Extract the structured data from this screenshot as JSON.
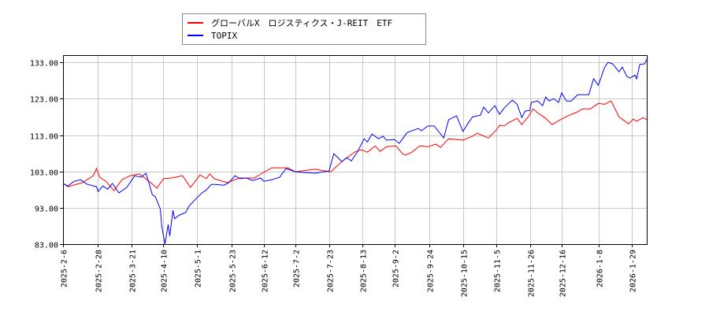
{
  "chart_data": {
    "type": "line",
    "title": "",
    "xlabel": "",
    "ylabel": "",
    "ylim": [
      83,
      135
    ],
    "xlim": [
      "2025-02-06",
      "2026-02-08"
    ],
    "grid": true,
    "legend_position": "top-center",
    "y_ticks": [
      "83.00",
      "93.00",
      "103.00",
      "113.00",
      "123.00",
      "133.00"
    ],
    "x_ticks": [
      "2025-2-6",
      "2025-2-28",
      "2025-3-21",
      "2025-4-10",
      "2025-5-1",
      "2025-5-23",
      "2025-6-12",
      "2025-7-2",
      "2025-7-23",
      "2025-8-13",
      "2025-9-2",
      "2025-9-24",
      "2025-10-15",
      "2025-11-5",
      "2025-11-26",
      "2025-12-16",
      "2026-1-8",
      "2026-1-29"
    ],
    "series": [
      {
        "name": "グローバルX　ロジスティクス・J-REIT　ETF",
        "color": "#ff0000",
        "points": [
          [
            "2025-02-06",
            99.7
          ],
          [
            "2025-02-09",
            98.8
          ],
          [
            "2025-02-18",
            99.9
          ],
          [
            "2025-02-25",
            101.8
          ],
          [
            "2025-02-27",
            103.8
          ],
          [
            "2025-03-01",
            101.4
          ],
          [
            "2025-03-05",
            100.3
          ],
          [
            "2025-03-10",
            97.7
          ],
          [
            "2025-03-15",
            100.7
          ],
          [
            "2025-03-20",
            101.8
          ],
          [
            "2025-03-26",
            102.3
          ],
          [
            "2025-04-01",
            100.3
          ],
          [
            "2025-04-06",
            98.4
          ],
          [
            "2025-04-10",
            101.0
          ],
          [
            "2025-04-15",
            101.2
          ],
          [
            "2025-04-22",
            101.8
          ],
          [
            "2025-04-27",
            98.6
          ],
          [
            "2025-05-03",
            102.0
          ],
          [
            "2025-05-07",
            101.0
          ],
          [
            "2025-05-09",
            102.3
          ],
          [
            "2025-05-12",
            101.0
          ],
          [
            "2025-05-20",
            99.9
          ],
          [
            "2025-05-28",
            101.2
          ],
          [
            "2025-06-06",
            101.2
          ],
          [
            "2025-06-11",
            102.5
          ],
          [
            "2025-06-17",
            104.0
          ],
          [
            "2025-06-27",
            104.0
          ],
          [
            "2025-07-02",
            102.9
          ],
          [
            "2025-07-14",
            103.6
          ],
          [
            "2025-07-24",
            102.9
          ],
          [
            "2025-07-31",
            105.7
          ],
          [
            "2025-08-08",
            108.3
          ],
          [
            "2025-08-12",
            109.0
          ],
          [
            "2025-08-16",
            108.3
          ],
          [
            "2025-08-21",
            110.0
          ],
          [
            "2025-08-24",
            108.5
          ],
          [
            "2025-08-28",
            109.8
          ],
          [
            "2025-09-03",
            110.0
          ],
          [
            "2025-09-07",
            107.9
          ],
          [
            "2025-09-09",
            107.5
          ],
          [
            "2025-09-13",
            108.3
          ],
          [
            "2025-09-18",
            110.0
          ],
          [
            "2025-09-23",
            109.8
          ],
          [
            "2025-09-28",
            110.5
          ],
          [
            "2025-10-01",
            109.6
          ],
          [
            "2025-10-06",
            112.0
          ],
          [
            "2025-10-15",
            111.6
          ],
          [
            "2025-10-21",
            112.7
          ],
          [
            "2025-10-24",
            113.5
          ],
          [
            "2025-10-31",
            112.2
          ],
          [
            "2025-11-05",
            114.4
          ],
          [
            "2025-11-07",
            115.7
          ],
          [
            "2025-11-10",
            115.5
          ],
          [
            "2025-11-13",
            116.5
          ],
          [
            "2025-11-18",
            117.6
          ],
          [
            "2025-11-21",
            115.9
          ],
          [
            "2025-11-25",
            118.0
          ],
          [
            "2025-11-28",
            120.2
          ],
          [
            "2025-12-01",
            119.1
          ],
          [
            "2025-12-06",
            117.6
          ],
          [
            "2025-12-10",
            115.9
          ],
          [
            "2025-12-15",
            117.2
          ],
          [
            "2025-12-20",
            118.3
          ],
          [
            "2025-12-26",
            119.4
          ],
          [
            "2025-12-29",
            120.2
          ],
          [
            "2026-01-03",
            120.2
          ],
          [
            "2026-01-08",
            121.7
          ],
          [
            "2026-01-12",
            121.5
          ],
          [
            "2026-01-16",
            122.4
          ],
          [
            "2026-01-21",
            118.0
          ],
          [
            "2026-01-27",
            116.1
          ],
          [
            "2026-01-30",
            117.4
          ],
          [
            "2026-02-01",
            116.8
          ],
          [
            "2026-02-05",
            117.8
          ],
          [
            "2026-02-08",
            117.2
          ]
        ]
      },
      {
        "name": "TOPIX",
        "color": "#0000ff",
        "points": [
          [
            "2025-02-06",
            99.7
          ],
          [
            "2025-02-09",
            99.0
          ],
          [
            "2025-02-13",
            100.3
          ],
          [
            "2025-02-17",
            100.7
          ],
          [
            "2025-02-21",
            99.5
          ],
          [
            "2025-02-27",
            98.8
          ],
          [
            "2025-02-28",
            97.5
          ],
          [
            "2025-03-03",
            99.0
          ],
          [
            "2025-03-06",
            98.1
          ],
          [
            "2025-03-09",
            99.7
          ],
          [
            "2025-03-13",
            97.1
          ],
          [
            "2025-03-18",
            98.6
          ],
          [
            "2025-03-23",
            101.8
          ],
          [
            "2025-03-27",
            101.4
          ],
          [
            "2025-03-30",
            102.5
          ],
          [
            "2025-04-01",
            99.7
          ],
          [
            "2025-04-03",
            96.6
          ],
          [
            "2025-04-05",
            96.0
          ],
          [
            "2025-04-08",
            92.7
          ],
          [
            "2025-04-09",
            87.8
          ],
          [
            "2025-04-11",
            83.0
          ],
          [
            "2025-04-13",
            88.4
          ],
          [
            "2025-04-14",
            85.2
          ],
          [
            "2025-04-16",
            92.3
          ],
          [
            "2025-04-17",
            90.0
          ],
          [
            "2025-04-20",
            91.0
          ],
          [
            "2025-04-24",
            91.7
          ],
          [
            "2025-04-26",
            93.4
          ],
          [
            "2025-04-30",
            95.3
          ],
          [
            "2025-05-04",
            97.0
          ],
          [
            "2025-05-07",
            97.9
          ],
          [
            "2025-05-10",
            99.4
          ],
          [
            "2025-05-13",
            99.4
          ],
          [
            "2025-05-18",
            99.2
          ],
          [
            "2025-05-21",
            99.9
          ],
          [
            "2025-05-25",
            101.8
          ],
          [
            "2025-05-28",
            101.0
          ],
          [
            "2025-06-01",
            101.2
          ],
          [
            "2025-06-05",
            100.5
          ],
          [
            "2025-06-10",
            101.2
          ],
          [
            "2025-06-12",
            100.3
          ],
          [
            "2025-06-17",
            100.7
          ],
          [
            "2025-06-22",
            101.4
          ],
          [
            "2025-06-26",
            103.8
          ],
          [
            "2025-07-02",
            102.9
          ],
          [
            "2025-07-14",
            102.5
          ],
          [
            "2025-07-23",
            103.1
          ],
          [
            "2025-07-26",
            107.9
          ],
          [
            "2025-07-31",
            105.7
          ],
          [
            "2025-08-03",
            106.8
          ],
          [
            "2025-08-06",
            105.9
          ],
          [
            "2025-08-10",
            108.5
          ],
          [
            "2025-08-14",
            112.0
          ],
          [
            "2025-08-16",
            111.1
          ],
          [
            "2025-08-19",
            113.3
          ],
          [
            "2025-08-23",
            112.0
          ],
          [
            "2025-08-26",
            112.7
          ],
          [
            "2025-08-28",
            111.6
          ],
          [
            "2025-09-02",
            111.8
          ],
          [
            "2025-09-05",
            110.7
          ],
          [
            "2025-09-10",
            113.7
          ],
          [
            "2025-09-17",
            114.8
          ],
          [
            "2025-09-19",
            114.2
          ],
          [
            "2025-09-23",
            115.5
          ],
          [
            "2025-09-27",
            115.5
          ],
          [
            "2025-10-03",
            112.2
          ],
          [
            "2025-10-06",
            117.2
          ],
          [
            "2025-10-11",
            118.3
          ],
          [
            "2025-10-15",
            114.0
          ],
          [
            "2025-10-18",
            116.1
          ],
          [
            "2025-10-21",
            118.0
          ],
          [
            "2025-10-26",
            118.5
          ],
          [
            "2025-10-28",
            120.7
          ],
          [
            "2025-10-31",
            119.1
          ],
          [
            "2025-11-04",
            121.1
          ],
          [
            "2025-11-07",
            118.7
          ],
          [
            "2025-11-10",
            120.5
          ],
          [
            "2025-11-15",
            122.6
          ],
          [
            "2025-11-18",
            121.5
          ],
          [
            "2025-11-21",
            117.8
          ],
          [
            "2025-11-23",
            119.6
          ],
          [
            "2025-11-26",
            119.8
          ],
          [
            "2025-11-27",
            122.0
          ],
          [
            "2025-12-01",
            122.4
          ],
          [
            "2025-12-04",
            121.1
          ],
          [
            "2025-12-06",
            123.5
          ],
          [
            "2025-12-08",
            122.4
          ],
          [
            "2025-12-11",
            123.0
          ],
          [
            "2025-12-14",
            122.0
          ],
          [
            "2025-12-16",
            124.6
          ],
          [
            "2025-12-19",
            122.4
          ],
          [
            "2025-12-22",
            122.4
          ],
          [
            "2025-12-26",
            124.1
          ],
          [
            "2026-01-02",
            124.1
          ],
          [
            "2026-01-05",
            128.5
          ],
          [
            "2026-01-08",
            126.7
          ],
          [
            "2026-01-12",
            131.7
          ],
          [
            "2026-01-14",
            133.0
          ],
          [
            "2026-01-17",
            132.6
          ],
          [
            "2026-01-21",
            130.4
          ],
          [
            "2026-01-23",
            131.7
          ],
          [
            "2026-01-26",
            129.1
          ],
          [
            "2026-01-28",
            128.7
          ],
          [
            "2026-01-31",
            129.5
          ],
          [
            "2026-02-01",
            128.5
          ],
          [
            "2026-02-03",
            132.4
          ],
          [
            "2026-02-06",
            132.6
          ],
          [
            "2026-02-08",
            134.3
          ]
        ]
      }
    ]
  }
}
